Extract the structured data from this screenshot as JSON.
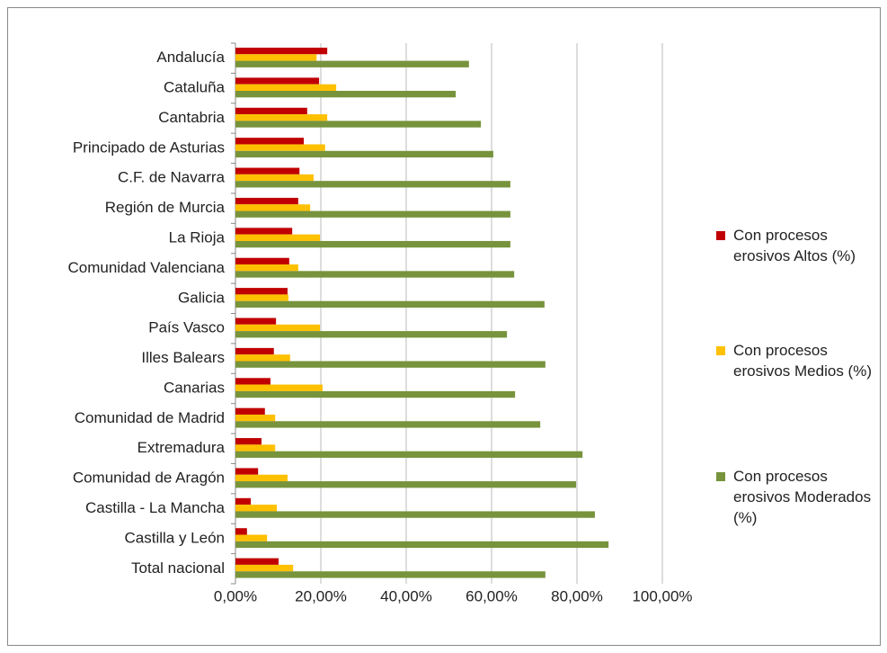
{
  "chart_data": {
    "type": "bar",
    "orientation": "horizontal",
    "categories": [
      "Andalucía",
      "Cataluña",
      "Cantabria",
      "Principado de Asturias",
      "C.F. de Navarra",
      "Región de Murcia",
      "La Rioja",
      "Comunidad Valenciana",
      "Galicia",
      "País Vasco",
      "Illes Balears",
      "Canarias",
      "Comunidad de Madrid",
      "Extremadura",
      "Comunidad de Aragón",
      "Castilla - La Mancha",
      "Castilla y León",
      "Total nacional"
    ],
    "series": [
      {
        "name": "Con procesos erosivos Altos (%)",
        "color": "#c00000",
        "values": [
          21.5,
          19.6,
          16.8,
          16,
          15,
          14.7,
          13.3,
          12.6,
          12.2,
          9.5,
          9,
          8.2,
          6.9,
          6.1,
          5.3,
          3.6,
          2.7,
          10.1
        ]
      },
      {
        "name": "Con procesos erosivos Medios (%)",
        "color": "#ffc000",
        "values": [
          19,
          23.6,
          21.5,
          21,
          18.3,
          17.5,
          19.8,
          14.7,
          12.4,
          19.8,
          12.8,
          20.4,
          9.3,
          9.3,
          12.2,
          9.7,
          7.4,
          13.5
        ]
      },
      {
        "name": "Con procesos erosivos Moderados (%)",
        "color": "#77933c",
        "values": [
          54.7,
          51.6,
          57.5,
          60.4,
          64.4,
          64.4,
          64.4,
          65.3,
          72.4,
          63.6,
          72.6,
          65.5,
          71.4,
          81.3,
          79.8,
          84.2,
          87.4,
          72.6
        ]
      }
    ],
    "xlim": [
      0,
      100
    ],
    "xticks": [
      {
        "value": 0,
        "label": "0,00%"
      },
      {
        "value": 20,
        "label": "20,00%"
      },
      {
        "value": 40,
        "label": "40,00%"
      },
      {
        "value": 60,
        "label": "60,00%"
      },
      {
        "value": 80,
        "label": "80,00%"
      },
      {
        "value": 100,
        "label": "100,00%"
      }
    ],
    "grid": true,
    "legend": "right"
  }
}
